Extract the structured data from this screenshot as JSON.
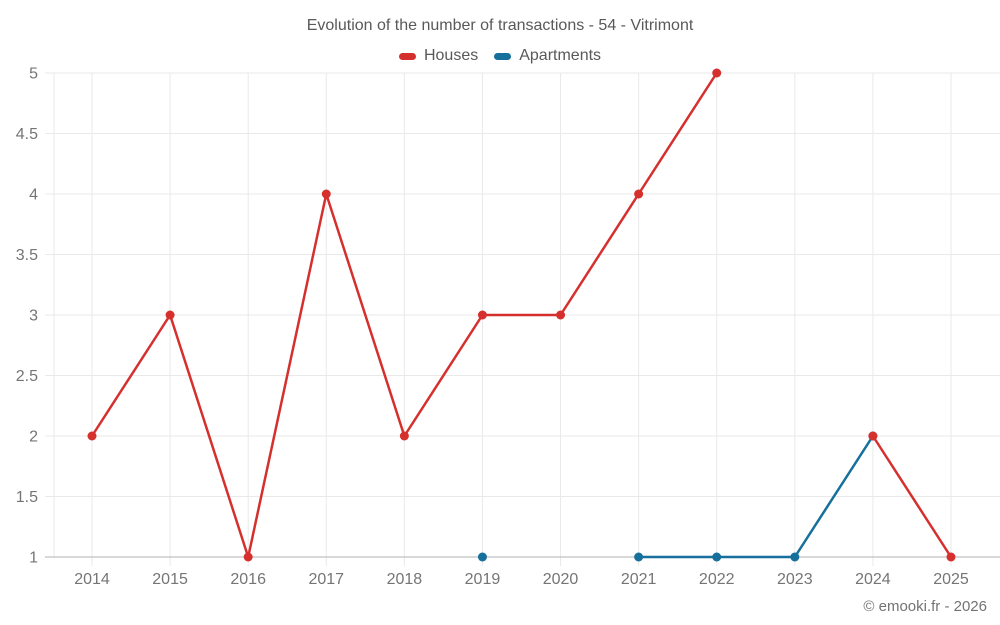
{
  "chart_data": {
    "type": "line",
    "title": "Evolution of the number of transactions - 54 - Vitrimont",
    "categories": [
      "2014",
      "2015",
      "2016",
      "2017",
      "2018",
      "2019",
      "2020",
      "2021",
      "2022",
      "2023",
      "2024",
      "2025"
    ],
    "series": [
      {
        "name": "Houses",
        "color": "#d5302e",
        "values": [
          2,
          3,
          1,
          4,
          2,
          3,
          3,
          4,
          5,
          null,
          2,
          1
        ]
      },
      {
        "name": "Apartments",
        "color": "#176f9c",
        "values": [
          null,
          null,
          null,
          null,
          null,
          1,
          null,
          1,
          1,
          1,
          2,
          null
        ]
      }
    ],
    "xlabel": "",
    "ylabel": "",
    "ylim": [
      1,
      5
    ],
    "yticks": [
      1,
      1.5,
      2,
      2.5,
      3,
      3.5,
      4,
      4.5,
      5
    ],
    "grid": true,
    "legend_position": "top"
  },
  "footer": {
    "copyright": "© emooki.fr - 2026"
  },
  "style": {
    "grid_color": "#e9e9e9",
    "axis_color": "#b0b0b0",
    "tick_text_color": "#757575",
    "title_color": "#595959"
  }
}
